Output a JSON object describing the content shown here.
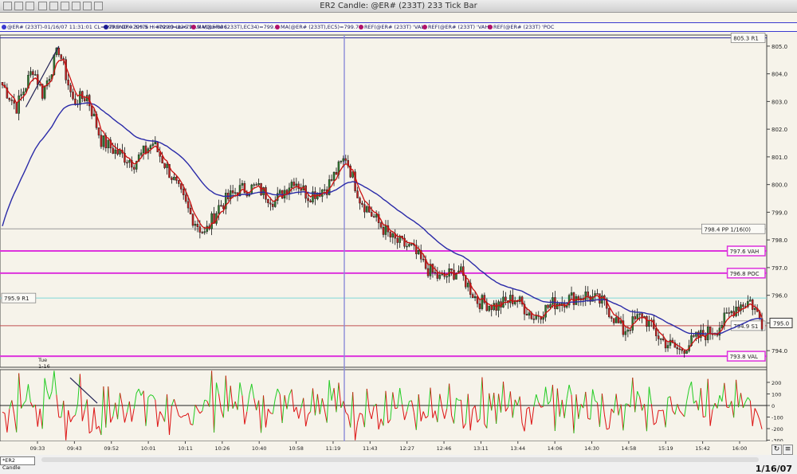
{
  "window": {
    "title": "ER2 Candle: @ER# (233T) 233 Tick Bar"
  },
  "toolbar": {
    "icons": [
      "chart-icon",
      "bars-icon",
      "candle-icon",
      "zoom-icon",
      "crosshair-icon",
      "cursor-icon",
      "alert-icon",
      "drawing-icon",
      "grid-icon"
    ]
  },
  "indicators": [
    {
      "color": "#3a3ad0",
      "text": "@ER# (233T)-01/16/07 11:31:01 CL=799.9 OP=799.5 Hi=799.9 Lo=798.9 VOL=836"
    },
    {
      "color": "#1a1a90",
      "text": "TREND(0.3)*76 + 802.8)=826.7"
    },
    {
      "color": "#b0106a",
      "text": "MA(@ER# (233T),EC34)=799.8"
    },
    {
      "color": "#b0106a",
      "text": "MA(@ER# (233T),EC5)=799.7"
    },
    {
      "color": "#b0106a",
      "text": "REF(@ER# (233T) 'VAL"
    },
    {
      "color": "#b0106a",
      "text": "REF(@ER# (233T) 'VAH"
    },
    {
      "color": "#b0106a",
      "text": "REF(@ER# (233T) 'POC"
    }
  ],
  "chart_data": {
    "type": "candlestick",
    "price_axis": {
      "min": 793.4,
      "max": 805.4,
      "ticks": [
        "805.0",
        "804.0",
        "803.0",
        "802.0",
        "801.0",
        "800.0",
        "799.0",
        "798.0",
        "797.0",
        "796.0",
        "795.0",
        "794.0"
      ],
      "tick_values": [
        805,
        804,
        803,
        802,
        801,
        800,
        799,
        798,
        797,
        796,
        795,
        794
      ]
    },
    "last_price": "795.0",
    "levels": [
      {
        "label": "805.3 R1",
        "value": 805.3,
        "color": "#2a2a9a",
        "label_side": "right"
      },
      {
        "label": "798.4 PP 1/16(0)",
        "value": 798.4,
        "color": "#9a9a9a",
        "label_side": "right"
      },
      {
        "label": "797.6 VAH",
        "value": 797.6,
        "color": "#dd33dd",
        "label_side": "right",
        "boxed": true
      },
      {
        "label": "796.8 POC",
        "value": 796.8,
        "color": "#dd33dd",
        "label_side": "right",
        "boxed": true
      },
      {
        "label": "795.9 R1",
        "value": 795.9,
        "color": "#7fd8d8",
        "label_side": "left"
      },
      {
        "label": "794.9 S1",
        "value": 794.9,
        "color": "#c05050",
        "label_side": "right"
      },
      {
        "label": "793.8 VAL",
        "value": 793.8,
        "color": "#dd33dd",
        "label_side": "right",
        "boxed": true
      }
    ],
    "day_label": [
      "Tue",
      "1-16"
    ],
    "time_ticks": [
      "09:33",
      "09:43",
      "09:52",
      "10:01",
      "10:11",
      "10:26",
      "10:40",
      "10:58",
      "11:19",
      "11:43",
      "12:27",
      "12:46",
      "13:11",
      "13:44",
      "14:06",
      "14:30",
      "14:58",
      "15:19",
      "15:42",
      "16:00"
    ],
    "osc_axis": {
      "min": -310,
      "max": 310,
      "ticks": [
        "200",
        "100",
        "0",
        "-100",
        "-200",
        "-300"
      ],
      "tick_values": [
        200,
        100,
        0,
        -100,
        -200,
        -300
      ]
    },
    "keypoints": [
      [
        0,
        803.6
      ],
      [
        6,
        802.8
      ],
      [
        13,
        804.2
      ],
      [
        17,
        803.3
      ],
      [
        24,
        804.9
      ],
      [
        30,
        803.0
      ],
      [
        36,
        803.2
      ],
      [
        42,
        801.6
      ],
      [
        48,
        801.2
      ],
      [
        56,
        800.8
      ],
      [
        64,
        801.5
      ],
      [
        72,
        800.3
      ],
      [
        80,
        798.9
      ],
      [
        86,
        798.2
      ],
      [
        92,
        799.2
      ],
      [
        100,
        799.8
      ],
      [
        108,
        799.9
      ],
      [
        116,
        799.4
      ],
      [
        124,
        800.2
      ],
      [
        130,
        799.6
      ],
      [
        138,
        799.9
      ],
      [
        146,
        801.0
      ],
      [
        152,
        799.5
      ],
      [
        158,
        798.8
      ],
      [
        166,
        798.0
      ],
      [
        174,
        797.7
      ],
      [
        180,
        797.0
      ],
      [
        186,
        796.6
      ],
      [
        194,
        796.9
      ],
      [
        202,
        795.8
      ],
      [
        210,
        795.6
      ],
      [
        218,
        795.9
      ],
      [
        226,
        795.2
      ],
      [
        234,
        795.7
      ],
      [
        242,
        795.9
      ],
      [
        248,
        796.0
      ],
      [
        256,
        795.7
      ],
      [
        264,
        794.7
      ],
      [
        272,
        795.3
      ],
      [
        280,
        794.4
      ],
      [
        288,
        794.0
      ],
      [
        296,
        794.5
      ],
      [
        304,
        794.8
      ],
      [
        312,
        795.6
      ],
      [
        318,
        795.8
      ],
      [
        323,
        795.0
      ]
    ],
    "candle_count": 324
  }
}
